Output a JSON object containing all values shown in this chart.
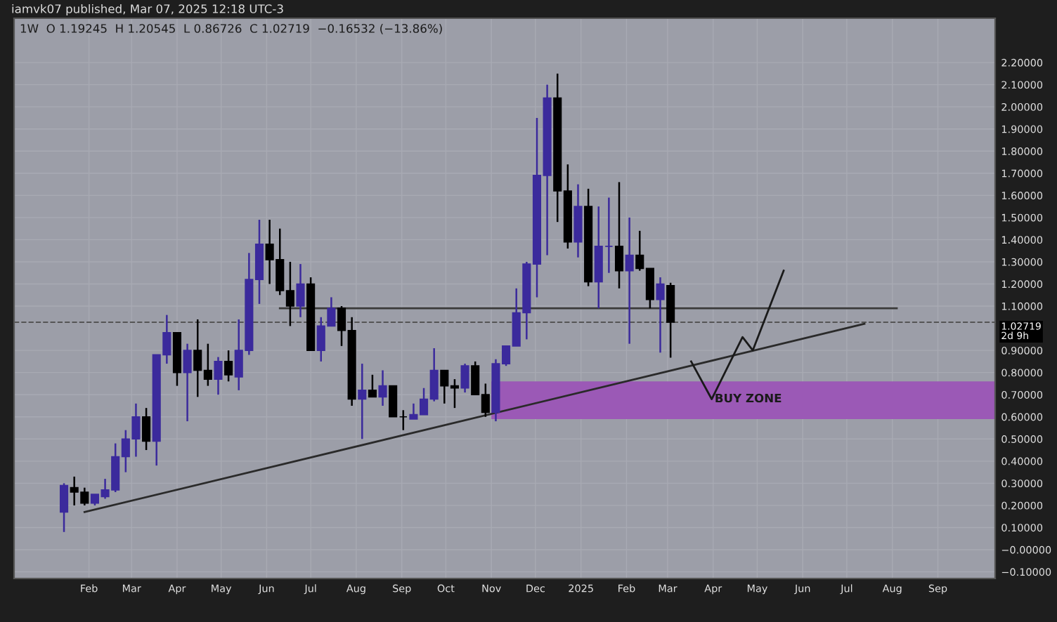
{
  "chart_data": {
    "type": "candlestick",
    "annotations": [
      "iamvk07 published, Mar 07, 2025 12:18 UTC-3",
      "1W  O 1.19245  H 1.20545  L 0.86726  C 1.02719  −0.16532 (−13.86%)",
      {
        "text": "BUY ZONE",
        "x": "2025-04-02",
        "y": 0.68
      }
    ],
    "x": [
      "2024-01-15",
      "2024-01-22",
      "2024-01-29",
      "2024-02-05",
      "2024-02-12",
      "2024-02-19",
      "2024-02-26",
      "2024-03-04",
      "2024-03-11",
      "2024-03-18",
      "2024-03-25",
      "2024-04-01",
      "2024-04-08",
      "2024-04-15",
      "2024-04-22",
      "2024-04-29",
      "2024-05-06",
      "2024-05-13",
      "2024-05-20",
      "2024-05-27",
      "2024-06-03",
      "2024-06-10",
      "2024-06-17",
      "2024-06-24",
      "2024-07-01",
      "2024-07-08",
      "2024-07-15",
      "2024-07-22",
      "2024-07-29",
      "2024-08-05",
      "2024-08-12",
      "2024-08-19",
      "2024-08-26",
      "2024-09-02",
      "2024-09-09",
      "2024-09-16",
      "2024-09-23",
      "2024-09-30",
      "2024-10-07",
      "2024-10-14",
      "2024-10-21",
      "2024-10-28",
      "2024-11-04",
      "2024-11-11",
      "2024-11-18",
      "2024-11-25",
      "2024-12-02",
      "2024-12-09",
      "2024-12-16",
      "2024-12-23",
      "2024-12-30",
      "2025-01-06",
      "2025-01-13",
      "2025-01-20",
      "2025-01-27",
      "2025-02-03",
      "2025-02-10",
      "2025-02-17",
      "2025-02-24",
      "2025-03-03"
    ],
    "ohlc": [
      [
        0.17,
        0.3,
        0.08,
        0.29
      ],
      [
        0.28,
        0.33,
        0.2,
        0.26
      ],
      [
        0.26,
        0.28,
        0.2,
        0.21
      ],
      [
        0.21,
        0.25,
        0.2,
        0.25
      ],
      [
        0.24,
        0.32,
        0.23,
        0.27
      ],
      [
        0.27,
        0.48,
        0.26,
        0.42
      ],
      [
        0.42,
        0.54,
        0.35,
        0.5
      ],
      [
        0.5,
        0.66,
        0.42,
        0.6
      ],
      [
        0.6,
        0.64,
        0.45,
        0.49
      ],
      [
        0.49,
        0.88,
        0.38,
        0.88
      ],
      [
        0.88,
        1.06,
        0.84,
        0.98
      ],
      [
        0.98,
        0.98,
        0.74,
        0.8
      ],
      [
        0.8,
        0.93,
        0.58,
        0.9
      ],
      [
        0.9,
        1.04,
        0.69,
        0.81
      ],
      [
        0.81,
        0.93,
        0.74,
        0.77
      ],
      [
        0.77,
        0.87,
        0.7,
        0.85
      ],
      [
        0.85,
        0.9,
        0.76,
        0.79
      ],
      [
        0.78,
        1.04,
        0.72,
        0.9
      ],
      [
        0.9,
        1.34,
        0.88,
        1.22
      ],
      [
        1.22,
        1.49,
        1.11,
        1.38
      ],
      [
        1.38,
        1.49,
        1.2,
        1.31
      ],
      [
        1.31,
        1.45,
        1.15,
        1.17
      ],
      [
        1.17,
        1.3,
        1.01,
        1.1
      ],
      [
        1.1,
        1.29,
        1.05,
        1.2
      ],
      [
        1.2,
        1.23,
        0.9,
        0.9
      ],
      [
        0.9,
        1.05,
        0.85,
        1.01
      ],
      [
        1.01,
        1.14,
        1.01,
        1.09
      ],
      [
        1.09,
        1.1,
        0.92,
        0.99
      ],
      [
        0.99,
        1.05,
        0.65,
        0.68
      ],
      [
        0.68,
        0.84,
        0.5,
        0.72
      ],
      [
        0.72,
        0.79,
        0.69,
        0.69
      ],
      [
        0.69,
        0.81,
        0.65,
        0.74
      ],
      [
        0.74,
        0.74,
        0.6,
        0.6
      ],
      [
        0.6,
        0.63,
        0.54,
        0.6
      ],
      [
        0.59,
        0.66,
        0.59,
        0.61
      ],
      [
        0.61,
        0.73,
        0.61,
        0.68
      ],
      [
        0.68,
        0.91,
        0.67,
        0.81
      ],
      [
        0.81,
        0.81,
        0.66,
        0.74
      ],
      [
        0.74,
        0.77,
        0.64,
        0.73
      ],
      [
        0.73,
        0.84,
        0.71,
        0.83
      ],
      [
        0.83,
        0.85,
        0.7,
        0.7
      ],
      [
        0.7,
        0.75,
        0.6,
        0.62
      ],
      [
        0.62,
        0.86,
        0.58,
        0.84
      ],
      [
        0.84,
        0.92,
        0.83,
        0.92
      ],
      [
        0.92,
        1.18,
        0.92,
        1.07
      ],
      [
        1.07,
        1.3,
        0.95,
        1.29
      ],
      [
        1.29,
        1.95,
        1.14,
        1.69
      ],
      [
        1.69,
        2.1,
        1.33,
        2.04
      ],
      [
        2.04,
        2.15,
        1.48,
        1.62
      ],
      [
        1.62,
        1.74,
        1.36,
        1.39
      ],
      [
        1.39,
        1.65,
        1.32,
        1.55
      ],
      [
        1.55,
        1.63,
        1.19,
        1.21
      ],
      [
        1.21,
        1.55,
        1.09,
        1.37
      ],
      [
        1.37,
        1.59,
        1.25,
        1.37
      ],
      [
        1.37,
        1.66,
        1.18,
        1.26
      ],
      [
        1.26,
        1.5,
        0.93,
        1.33
      ],
      [
        1.33,
        1.44,
        1.26,
        1.27
      ],
      [
        1.27,
        1.27,
        1.09,
        1.13
      ],
      [
        1.13,
        1.23,
        0.89,
        1.2
      ],
      [
        1.19245,
        1.20545,
        0.86726,
        1.02719
      ]
    ],
    "colors": [
      "#3b2a9c",
      "#000000",
      "#000000",
      "#3b2a9c",
      "#3b2a9c",
      "#3b2a9c",
      "#3b2a9c",
      "#3b2a9c",
      "#000000",
      "#3b2a9c",
      "#3b2a9c",
      "#000000",
      "#3b2a9c",
      "#000000",
      "#000000",
      "#3b2a9c",
      "#000000",
      "#3b2a9c",
      "#3b2a9c",
      "#3b2a9c",
      "#000000",
      "#000000",
      "#000000",
      "#3b2a9c",
      "#000000",
      "#3b2a9c",
      "#3b2a9c",
      "#000000",
      "#000000",
      "#3b2a9c",
      "#000000",
      "#3b2a9c",
      "#000000",
      "#000000",
      "#3b2a9c",
      "#3b2a9c",
      "#3b2a9c",
      "#000000",
      "#000000",
      "#3b2a9c",
      "#000000",
      "#000000",
      "#3b2a9c",
      "#3b2a9c",
      "#3b2a9c",
      "#3b2a9c",
      "#3b2a9c",
      "#3b2a9c",
      "#000000",
      "#000000",
      "#3b2a9c",
      "#000000",
      "#3b2a9c",
      "#3b2a9c",
      "#000000",
      "#3b2a9c",
      "#000000",
      "#000000",
      "#3b2a9c",
      "#000000"
    ],
    "series": [
      {
        "type": "area",
        "color": "#9b59b6",
        "x": [
          "2024-11-01",
          "2025-10-10"
        ],
        "lower": [
          0.59,
          0.59
        ],
        "upper": [
          0.76,
          0.76
        ],
        "values": [
          null,
          null
        ]
      },
      {
        "type": "line",
        "color": "#3a3a3a",
        "x": [
          "2024-06-10",
          "2025-08-04"
        ],
        "values": [
          1.09,
          1.09
        ]
      },
      {
        "type": "line",
        "color": "#2a2a2a",
        "x": [
          "2024-01-29",
          "2025-07-13"
        ],
        "values": [
          0.17,
          1.02
        ]
      },
      {
        "type": "line",
        "color": "#1a1a1a",
        "x": [
          "2025-03-17",
          "2025-03-31",
          "2025-04-21",
          "2025-04-28",
          "2025-05-19"
        ],
        "values": [
          0.85,
          0.68,
          0.96,
          0.9,
          1.26
        ]
      }
    ],
    "ref_lines": [
      {
        "axis": "y",
        "value": 1.02719,
        "label": "1.02719\n2d 9h",
        "line_style": "dashed",
        "color": "#555555"
      }
    ],
    "xlim": [
      "2023-12-12",
      "2025-10-10"
    ],
    "xticks": [
      {
        "value": "2024-02-01",
        "label": "Feb"
      },
      {
        "value": "2024-03-01",
        "label": "Mar"
      },
      {
        "value": "2024-04-01",
        "label": "Apr"
      },
      {
        "value": "2024-05-01",
        "label": "May"
      },
      {
        "value": "2024-06-01",
        "label": "Jun"
      },
      {
        "value": "2024-07-01",
        "label": "Jul"
      },
      {
        "value": "2024-08-01",
        "label": "Aug"
      },
      {
        "value": "2024-09-01",
        "label": "Sep"
      },
      {
        "value": "2024-10-01",
        "label": "Oct"
      },
      {
        "value": "2024-11-01",
        "label": "Nov"
      },
      {
        "value": "2024-12-01",
        "label": "Dec"
      },
      {
        "value": "2025-01-01",
        "label": "2025"
      },
      {
        "value": "2025-02-01",
        "label": "Feb"
      },
      {
        "value": "2025-03-01",
        "label": "Mar"
      },
      {
        "value": "2025-04-01",
        "label": "Apr"
      },
      {
        "value": "2025-05-01",
        "label": "May"
      },
      {
        "value": "2025-06-01",
        "label": "Jun"
      },
      {
        "value": "2025-07-01",
        "label": "Jul"
      },
      {
        "value": "2025-08-01",
        "label": "Aug"
      },
      {
        "value": "2025-09-01",
        "label": "Sep"
      }
    ],
    "ylim": [
      -0.13,
      2.4
    ],
    "yticks": [
      {
        "value": 2.2,
        "label": "2.20000"
      },
      {
        "value": 2.1,
        "label": "2.10000"
      },
      {
        "value": 2.0,
        "label": "2.00000"
      },
      {
        "value": 1.9,
        "label": "1.90000"
      },
      {
        "value": 1.8,
        "label": "1.80000"
      },
      {
        "value": 1.7,
        "label": "1.70000"
      },
      {
        "value": 1.6,
        "label": "1.60000"
      },
      {
        "value": 1.5,
        "label": "1.50000"
      },
      {
        "value": 1.4,
        "label": "1.40000"
      },
      {
        "value": 1.3,
        "label": "1.30000"
      },
      {
        "value": 1.2,
        "label": "1.20000"
      },
      {
        "value": 1.1,
        "label": "1.10000"
      },
      {
        "value": 0.9,
        "label": "0.90000"
      },
      {
        "value": 0.8,
        "label": "0.80000"
      },
      {
        "value": 0.7,
        "label": "0.70000"
      },
      {
        "value": 0.6,
        "label": "0.60000"
      },
      {
        "value": 0.5,
        "label": "0.50000"
      },
      {
        "value": 0.4,
        "label": "0.40000"
      },
      {
        "value": 0.3,
        "label": "0.30000"
      },
      {
        "value": 0.2,
        "label": "0.20000"
      },
      {
        "value": 0.1,
        "label": "0.10000"
      },
      {
        "value": 0,
        "label": "−0.00000"
      },
      {
        "value": -0.1,
        "label": "−0.10000"
      }
    ],
    "grid": true
  }
}
